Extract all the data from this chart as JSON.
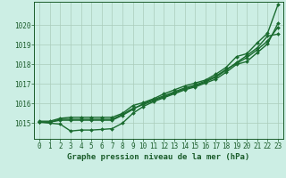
{
  "title": "Graphe pression niveau de la mer (hPa)",
  "background_color": "#cceee4",
  "grid_color": "#aaccbb",
  "xlim": [
    -0.5,
    23.5
  ],
  "ylim": [
    1014.2,
    1021.2
  ],
  "yticks": [
    1015,
    1016,
    1017,
    1018,
    1019,
    1020
  ],
  "ytick_labels": [
    "1015",
    "1016",
    "1017",
    "1018",
    "1019",
    "1020"
  ],
  "xticks": [
    0,
    1,
    2,
    3,
    4,
    5,
    6,
    7,
    8,
    9,
    10,
    11,
    12,
    13,
    14,
    15,
    16,
    17,
    18,
    19,
    20,
    21,
    22,
    23
  ],
  "series": [
    {
      "x": [
        0,
        1,
        2,
        3,
        4,
        5,
        6,
        7,
        8,
        9,
        10,
        11,
        12,
        13,
        14,
        15,
        16,
        17,
        18,
        19,
        20,
        21,
        22,
        23
      ],
      "y": [
        1015.1,
        1015.1,
        1015.25,
        1015.3,
        1015.3,
        1015.3,
        1015.3,
        1015.3,
        1015.5,
        1015.9,
        1016.05,
        1016.25,
        1016.5,
        1016.7,
        1016.9,
        1017.05,
        1017.2,
        1017.5,
        1017.85,
        1018.4,
        1018.55,
        1019.1,
        1019.6,
        1021.05
      ],
      "color": "#1a6b2f",
      "marker": "D",
      "markersize": 2.0,
      "linewidth": 1.0,
      "zorder": 4
    },
    {
      "x": [
        0,
        1,
        2,
        3,
        4,
        5,
        6,
        7,
        8,
        9,
        10,
        11,
        12,
        13,
        14,
        15,
        16,
        17,
        18,
        19,
        20,
        21,
        22,
        23
      ],
      "y": [
        1015.05,
        1015.05,
        1015.2,
        1015.2,
        1015.2,
        1015.2,
        1015.2,
        1015.2,
        1015.45,
        1015.75,
        1015.95,
        1016.15,
        1016.35,
        1016.55,
        1016.75,
        1016.9,
        1017.1,
        1017.35,
        1017.7,
        1018.1,
        1018.45,
        1018.85,
        1019.45,
        1019.55
      ],
      "color": "#1a6b2f",
      "marker": "D",
      "markersize": 2.0,
      "linewidth": 1.0,
      "zorder": 3
    },
    {
      "x": [
        0,
        1,
        2,
        3,
        4,
        5,
        6,
        7,
        8,
        9,
        10,
        11,
        12,
        13,
        14,
        15,
        16,
        17,
        18,
        19,
        20,
        21,
        22,
        23
      ],
      "y": [
        1015.05,
        1015.05,
        1015.15,
        1015.15,
        1015.15,
        1015.15,
        1015.15,
        1015.15,
        1015.4,
        1015.7,
        1016.0,
        1016.2,
        1016.4,
        1016.6,
        1016.8,
        1016.95,
        1017.15,
        1017.4,
        1017.75,
        1018.05,
        1018.35,
        1018.75,
        1019.2,
        1019.9
      ],
      "color": "#1a6b2f",
      "marker": "D",
      "markersize": 2.0,
      "linewidth": 1.0,
      "zorder": 3
    },
    {
      "x": [
        0,
        1,
        2,
        3,
        4,
        5,
        6,
        7,
        8,
        9,
        10,
        11,
        12,
        13,
        14,
        15,
        16,
        17,
        18,
        19,
        20,
        21,
        22,
        23
      ],
      "y": [
        1015.05,
        1015.0,
        1014.95,
        1014.6,
        1014.65,
        1014.65,
        1014.68,
        1014.72,
        1015.0,
        1015.5,
        1015.85,
        1016.1,
        1016.3,
        1016.5,
        1016.7,
        1016.85,
        1017.05,
        1017.25,
        1017.6,
        1018.0,
        1018.15,
        1018.6,
        1019.05,
        1020.1
      ],
      "color": "#1a6b2f",
      "marker": "D",
      "markersize": 2.0,
      "linewidth": 1.0,
      "zorder": 2
    }
  ],
  "title_color": "#1a5c2a",
  "title_fontsize": 6.5,
  "tick_label_fontsize": 5.5,
  "tick_color": "#1a5c2a"
}
